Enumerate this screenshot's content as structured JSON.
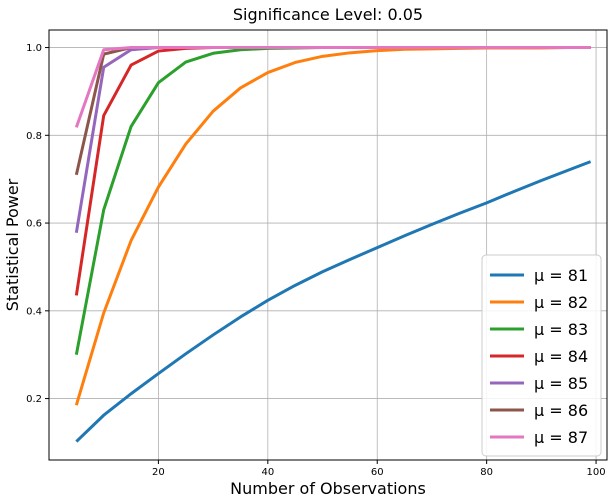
{
  "chart_data": {
    "type": "line",
    "title": "Significance Level: 0.05",
    "xlabel": "Number of Observations",
    "ylabel": "Statistical Power",
    "xlim": [
      0,
      102
    ],
    "ylim": [
      0.06,
      1.04
    ],
    "xticks": [
      20,
      40,
      60,
      80,
      100
    ],
    "yticks": [
      0.2,
      0.4,
      0.6,
      0.8,
      1.0
    ],
    "xtick_labels": [
      "20",
      "40",
      "60",
      "80",
      "100"
    ],
    "ytick_labels": [
      "0.2",
      "0.4",
      "0.6",
      "0.8",
      "1.0"
    ],
    "grid": true,
    "legend_position": "lower-right",
    "x": [
      5,
      10,
      15,
      20,
      25,
      30,
      35,
      40,
      45,
      50,
      55,
      60,
      65,
      70,
      75,
      80,
      85,
      90,
      95,
      99
    ],
    "series": [
      {
        "name": "μ = 81",
        "color": "#1f77b4",
        "values": [
          0.102,
          0.162,
          0.211,
          0.257,
          0.302,
          0.345,
          0.386,
          0.424,
          0.458,
          0.489,
          0.517,
          0.544,
          0.571,
          0.597,
          0.622,
          0.646,
          0.672,
          0.697,
          0.721,
          0.74
        ]
      },
      {
        "name": "μ = 82",
        "color": "#ff7f0e",
        "values": [
          0.185,
          0.395,
          0.56,
          0.682,
          0.78,
          0.855,
          0.908,
          0.943,
          0.966,
          0.98,
          0.988,
          0.993,
          0.996,
          0.997,
          0.998,
          0.999,
          0.999,
          0.999,
          1.0,
          1.0
        ]
      },
      {
        "name": "μ = 83",
        "color": "#2ca02c",
        "values": [
          0.3,
          0.63,
          0.82,
          0.92,
          0.967,
          0.987,
          0.995,
          0.998,
          0.999,
          1.0,
          1.0,
          1.0,
          1.0,
          1.0,
          1.0,
          1.0,
          1.0,
          1.0,
          1.0,
          1.0
        ]
      },
      {
        "name": "μ = 84",
        "color": "#d62728",
        "values": [
          0.435,
          0.845,
          0.96,
          0.992,
          0.998,
          1.0,
          1.0,
          1.0,
          1.0,
          1.0,
          1.0,
          1.0,
          1.0,
          1.0,
          1.0,
          1.0,
          1.0,
          1.0,
          1.0,
          1.0
        ]
      },
      {
        "name": "μ = 85",
        "color": "#9467bd",
        "values": [
          0.578,
          0.955,
          0.995,
          1.0,
          1.0,
          1.0,
          1.0,
          1.0,
          1.0,
          1.0,
          1.0,
          1.0,
          1.0,
          1.0,
          1.0,
          1.0,
          1.0,
          1.0,
          1.0,
          1.0
        ]
      },
      {
        "name": "μ = 86",
        "color": "#8c564b",
        "values": [
          0.71,
          0.985,
          1.0,
          1.0,
          1.0,
          1.0,
          1.0,
          1.0,
          1.0,
          1.0,
          1.0,
          1.0,
          1.0,
          1.0,
          1.0,
          1.0,
          1.0,
          1.0,
          1.0,
          1.0
        ]
      },
      {
        "name": "μ = 87",
        "color": "#e377c2",
        "values": [
          0.818,
          0.995,
          1.0,
          1.0,
          1.0,
          1.0,
          1.0,
          1.0,
          1.0,
          1.0,
          1.0,
          1.0,
          1.0,
          1.0,
          1.0,
          1.0,
          1.0,
          1.0,
          1.0,
          1.0
        ]
      }
    ]
  }
}
